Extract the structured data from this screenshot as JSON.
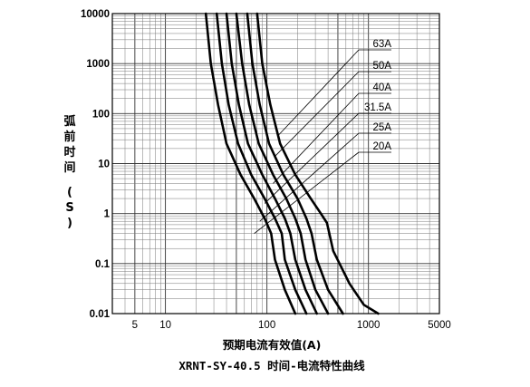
{
  "chart_data": {
    "type": "line",
    "title": "XRNT-SY-40.5  时间-电流特性曲线",
    "xlabel": "预期电流有效值(A)",
    "ylabel": "弧前时间 (S)",
    "x_scale": "log",
    "y_scale": "log",
    "xlim": [
      3,
      5000
    ],
    "ylim": [
      0.01,
      10000
    ],
    "x_ticks": [
      5,
      10,
      100,
      1000,
      5000
    ],
    "x_tick_labels": [
      "5",
      "10",
      "100",
      "1000",
      "5000"
    ],
    "y_ticks": [
      0.01,
      0.1,
      1,
      10,
      100,
      1000,
      10000
    ],
    "y_tick_labels": [
      "0.01",
      "0.1",
      "1",
      "10",
      "100",
      "1000",
      "10000"
    ],
    "grid": true,
    "series": [
      {
        "name": "20A",
        "points": [
          [
            25,
            10000
          ],
          [
            28,
            1000
          ],
          [
            33,
            150
          ],
          [
            40,
            25
          ],
          [
            55,
            6
          ],
          [
            75,
            2
          ],
          [
            95,
            0.8
          ],
          [
            110,
            0.4
          ],
          [
            120,
            0.12
          ],
          [
            150,
            0.03
          ],
          [
            190,
            0.01
          ]
        ]
      },
      {
        "name": "25A",
        "points": [
          [
            32,
            10000
          ],
          [
            36,
            1000
          ],
          [
            42,
            150
          ],
          [
            52,
            25
          ],
          [
            70,
            6
          ],
          [
            95,
            2
          ],
          [
            120,
            0.8
          ],
          [
            140,
            0.4
          ],
          [
            150,
            0.12
          ],
          [
            190,
            0.03
          ],
          [
            245,
            0.01
          ]
        ]
      },
      {
        "name": "31.5A",
        "points": [
          [
            40,
            10000
          ],
          [
            45,
            1000
          ],
          [
            53,
            150
          ],
          [
            65,
            25
          ],
          [
            90,
            6
          ],
          [
            120,
            2
          ],
          [
            150,
            0.8
          ],
          [
            170,
            0.4
          ],
          [
            190,
            0.12
          ],
          [
            240,
            0.03
          ],
          [
            310,
            0.01
          ]
        ]
      },
      {
        "name": "40A",
        "points": [
          [
            50,
            10000
          ],
          [
            57,
            1000
          ],
          [
            67,
            150
          ],
          [
            83,
            25
          ],
          [
            115,
            6
          ],
          [
            155,
            2
          ],
          [
            190,
            0.8
          ],
          [
            215,
            0.4
          ],
          [
            240,
            0.12
          ],
          [
            300,
            0.03
          ],
          [
            400,
            0.01
          ]
        ]
      },
      {
        "name": "50A",
        "points": [
          [
            64,
            10000
          ],
          [
            72,
            1000
          ],
          [
            85,
            150
          ],
          [
            105,
            25
          ],
          [
            145,
            6
          ],
          [
            200,
            2
          ],
          [
            245,
            0.8
          ],
          [
            275,
            0.4
          ],
          [
            310,
            0.12
          ],
          [
            400,
            0.03
          ],
          [
            560,
            0.01
          ]
        ]
      },
      {
        "name": "63A",
        "points": [
          [
            80,
            10000
          ],
          [
            90,
            1000
          ],
          [
            108,
            150
          ],
          [
            135,
            25
          ],
          [
            190,
            6
          ],
          [
            270,
            2
          ],
          [
            340,
            1.0
          ],
          [
            390,
            0.65
          ],
          [
            450,
            0.18
          ],
          [
            650,
            0.04
          ],
          [
            900,
            0.015
          ],
          [
            1250,
            0.01
          ]
        ]
      }
    ],
    "annotations": [
      {
        "text": "63A",
        "series": "63A",
        "anchor": [
          130,
          37
        ]
      },
      {
        "text": "50A",
        "series": "50A",
        "anchor": [
          120,
          14
        ]
      },
      {
        "text": "40A",
        "series": "40A",
        "anchor": [
          115,
          4
        ]
      },
      {
        "text": "31.5A",
        "series": "31.5A",
        "anchor": [
          95,
          1.6
        ]
      },
      {
        "text": "25A",
        "series": "25A",
        "anchor": [
          85,
          0.7
        ]
      },
      {
        "text": "20A",
        "series": "20A",
        "anchor": [
          75,
          0.4
        ]
      }
    ]
  }
}
